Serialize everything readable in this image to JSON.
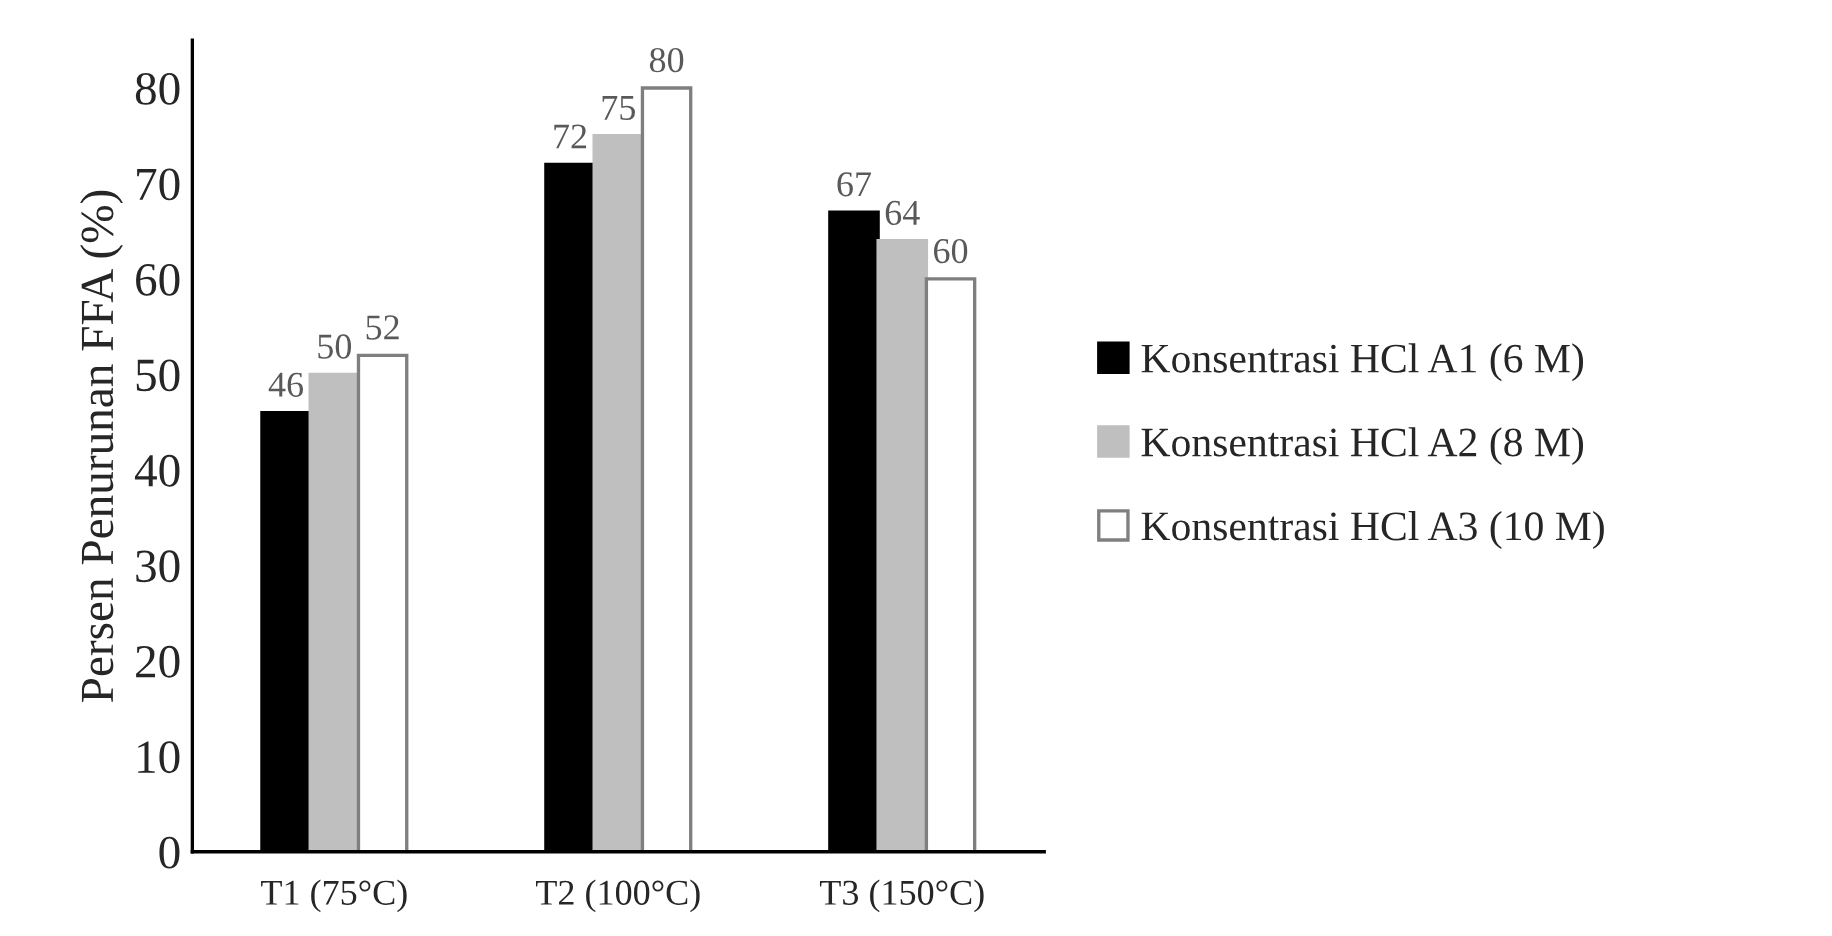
{
  "chart_data": {
    "type": "bar",
    "ylabel": "Persen Penurunan FFA (%)",
    "categories": [
      "T1 (75°C)",
      "T2 (100°C)",
      "T3 (150°C)"
    ],
    "series": [
      {
        "name": "Konsentrasi HCl A1 (6 M)",
        "color": "#000000",
        "values": [
          46,
          72,
          67
        ]
      },
      {
        "name": "Konsentrasi HCl A2 (8 M)",
        "color": "#bfbfbf",
        "values": [
          50,
          75,
          64
        ]
      },
      {
        "name": "Konsentrasi HCl A3 (10 M)",
        "color": "#ffffff",
        "values": [
          52,
          80,
          60
        ]
      }
    ],
    "ylim": [
      0,
      85
    ],
    "yticks": [
      0,
      10,
      20,
      30,
      40,
      50,
      60,
      70,
      80
    ],
    "data_labels": true,
    "grid": false,
    "legend": "right"
  }
}
